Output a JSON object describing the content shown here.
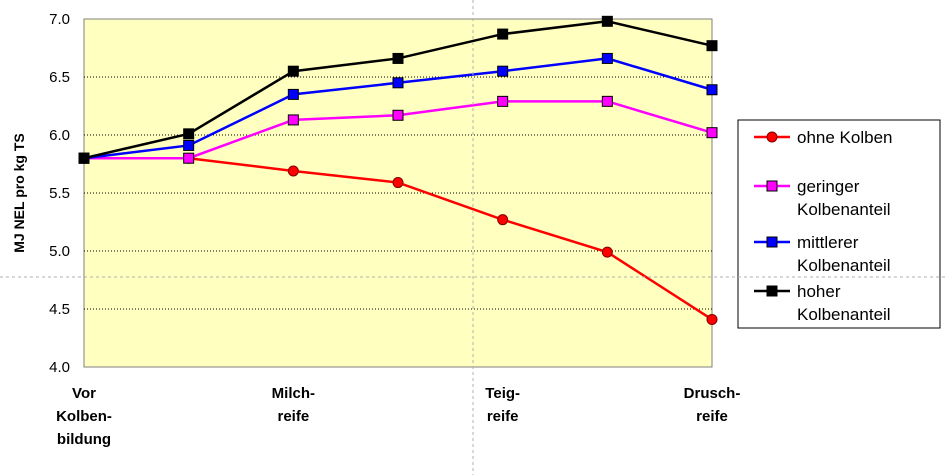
{
  "chart_data": {
    "type": "line",
    "ylabel": "MJ NEL pro kg TS",
    "ylim": [
      4.0,
      7.0
    ],
    "yticks": [
      "4.0",
      "4.5",
      "5.0",
      "5.5",
      "6.0",
      "6.5",
      "7.0"
    ],
    "grid": true,
    "legend_placement": "right",
    "x_tick_labels": [
      {
        "lines": [
          "Vor",
          "Kolben-",
          "bildung"
        ],
        "index": 0
      },
      {
        "lines": [
          "Milch-",
          "reife"
        ],
        "index": 2
      },
      {
        "lines": [
          "Teig-",
          "reife"
        ],
        "index": 4
      },
      {
        "lines": [
          "Drusch-",
          "reife"
        ],
        "index": 6
      }
    ],
    "x_count": 7,
    "series": [
      {
        "name": [
          "ohne Kolben"
        ],
        "color": "#ff0000",
        "marker": "circle",
        "values": [
          5.8,
          5.8,
          5.69,
          5.59,
          5.27,
          4.99,
          4.41
        ]
      },
      {
        "name": [
          "geringer",
          "Kolbenanteil"
        ],
        "color": "#ff00ff",
        "marker": "square",
        "values": [
          5.8,
          5.8,
          6.13,
          6.17,
          6.29,
          6.29,
          6.02
        ]
      },
      {
        "name": [
          "mittlerer",
          "Kolbenanteil"
        ],
        "color": "#0000ff",
        "marker": "square",
        "values": [
          5.8,
          5.91,
          6.35,
          6.45,
          6.55,
          6.66,
          6.39
        ]
      },
      {
        "name": [
          "hoher",
          "Kolbenanteil"
        ],
        "color": "#000000",
        "marker": "square",
        "values": [
          5.8,
          6.01,
          6.55,
          6.66,
          6.87,
          6.98,
          6.77
        ]
      }
    ],
    "plot_background": "#ffffc0"
  }
}
